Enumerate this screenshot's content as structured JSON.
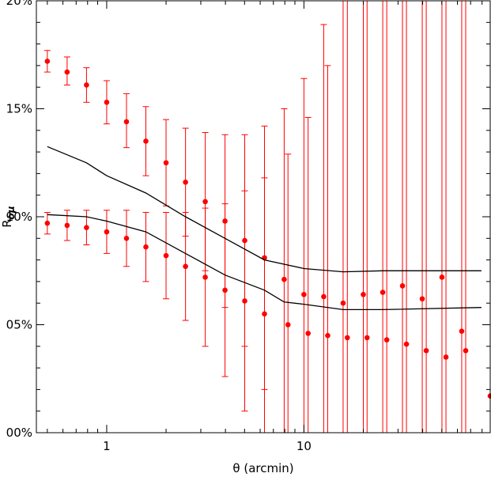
{
  "chart_data": {
    "type": "scatter",
    "title": "",
    "xlabel": "θ (arcmin)",
    "ylabel": "Rδμ",
    "xscale": "log",
    "xlim": [
      0.44,
      88
    ],
    "ylim": [
      0,
      20
    ],
    "x_ticks": [
      1,
      10
    ],
    "x_tick_labels": [
      "1",
      "10"
    ],
    "y_ticks": [
      0,
      5,
      10,
      15,
      20
    ],
    "y_tick_labels": [
      "00%",
      "05%",
      "10%",
      "15%",
      "20%"
    ],
    "point_color": "#ff0000",
    "line_color": "#000000",
    "grid": false,
    "series": [
      {
        "kind": "points",
        "points": [
          {
            "x": 0.5,
            "y": 17.2,
            "lo": 16.7,
            "hi": 17.7
          },
          {
            "x": 0.63,
            "y": 16.7,
            "lo": 16.1,
            "hi": 17.4
          },
          {
            "x": 0.79,
            "y": 16.1,
            "lo": 15.3,
            "hi": 16.9
          },
          {
            "x": 1.0,
            "y": 15.3,
            "lo": 14.3,
            "hi": 16.3
          },
          {
            "x": 1.26,
            "y": 14.4,
            "lo": 13.2,
            "hi": 15.7
          },
          {
            "x": 1.58,
            "y": 13.5,
            "lo": 11.9,
            "hi": 15.1
          },
          {
            "x": 2.0,
            "y": 12.5,
            "lo": 10.5,
            "hi": 14.5
          },
          {
            "x": 2.51,
            "y": 11.6,
            "lo": 9.1,
            "hi": 14.1
          },
          {
            "x": 3.16,
            "y": 10.7,
            "lo": 7.5,
            "hi": 13.9
          },
          {
            "x": 3.98,
            "y": 9.8,
            "lo": 5.8,
            "hi": 13.8
          },
          {
            "x": 5.01,
            "y": 8.9,
            "lo": 4.0,
            "hi": 13.8
          },
          {
            "x": 6.31,
            "y": 8.1,
            "lo": 2.0,
            "hi": 14.2
          }
        ]
      },
      {
        "kind": "points",
        "points": [
          {
            "x": 0.5,
            "y": 9.7,
            "lo": 9.2,
            "hi": 10.2
          },
          {
            "x": 0.63,
            "y": 9.6,
            "lo": 8.9,
            "hi": 10.3
          },
          {
            "x": 0.79,
            "y": 9.5,
            "lo": 8.7,
            "hi": 10.3
          },
          {
            "x": 1.0,
            "y": 9.3,
            "lo": 8.3,
            "hi": 10.3
          },
          {
            "x": 1.26,
            "y": 9.0,
            "lo": 7.7,
            "hi": 10.3
          },
          {
            "x": 1.58,
            "y": 8.6,
            "lo": 7.0,
            "hi": 10.2
          },
          {
            "x": 2.0,
            "y": 8.2,
            "lo": 6.2,
            "hi": 10.2
          },
          {
            "x": 2.51,
            "y": 7.7,
            "lo": 5.2,
            "hi": 10.2
          },
          {
            "x": 3.16,
            "y": 7.2,
            "lo": 4.0,
            "hi": 10.4
          },
          {
            "x": 3.98,
            "y": 6.6,
            "lo": 2.6,
            "hi": 10.6
          },
          {
            "x": 5.01,
            "y": 6.1,
            "lo": 1.0,
            "hi": 11.2
          },
          {
            "x": 6.31,
            "y": 5.5,
            "lo": 0.0,
            "hi": 11.8
          }
        ]
      },
      {
        "kind": "points",
        "points": [
          {
            "x": 7.94,
            "y": 7.1,
            "lo": 0.0,
            "hi": 15.0
          },
          {
            "x": 8.3,
            "y": 5.0,
            "lo": 0.0,
            "hi": 12.9
          },
          {
            "x": 10.0,
            "y": 6.4,
            "lo": 0.0,
            "hi": 16.4
          },
          {
            "x": 10.5,
            "y": 4.6,
            "lo": 0.0,
            "hi": 14.6
          },
          {
            "x": 12.6,
            "y": 6.3,
            "lo": 0.0,
            "hi": 18.9
          },
          {
            "x": 13.2,
            "y": 4.5,
            "lo": 0.0,
            "hi": 17.0
          },
          {
            "x": 15.8,
            "y": 6.0,
            "lo": 0.0,
            "hi": 20.0
          },
          {
            "x": 16.6,
            "y": 4.4,
            "lo": 0.0,
            "hi": 20.0
          },
          {
            "x": 20.0,
            "y": 6.4,
            "lo": 0.0,
            "hi": 20.0
          },
          {
            "x": 20.9,
            "y": 4.4,
            "lo": 0.0,
            "hi": 20.0
          },
          {
            "x": 25.1,
            "y": 6.5,
            "lo": 0.0,
            "hi": 20.0
          },
          {
            "x": 26.3,
            "y": 4.3,
            "lo": 0.0,
            "hi": 20.0
          },
          {
            "x": 31.6,
            "y": 6.8,
            "lo": 0.0,
            "hi": 20.0
          },
          {
            "x": 33.1,
            "y": 4.1,
            "lo": 0.0,
            "hi": 20.0
          },
          {
            "x": 39.8,
            "y": 6.2,
            "lo": 0.0,
            "hi": 20.0
          },
          {
            "x": 41.7,
            "y": 3.8,
            "lo": 0.0,
            "hi": 20.0
          },
          {
            "x": 50.1,
            "y": 7.2,
            "lo": 0.0,
            "hi": 20.0
          },
          {
            "x": 52.5,
            "y": 3.5,
            "lo": 0.0,
            "hi": 20.0
          },
          {
            "x": 63.1,
            "y": 4.7,
            "lo": 0.0,
            "hi": 20.0
          },
          {
            "x": 66.1,
            "y": 3.8,
            "lo": 0.0,
            "hi": 20.0
          },
          {
            "x": 88.0,
            "y": 1.7,
            "lo": 0.0,
            "hi": 20.0
          }
        ]
      },
      {
        "kind": "line",
        "points": [
          {
            "x": 0.5,
            "y": 13.25
          },
          {
            "x": 0.79,
            "y": 12.5
          },
          {
            "x": 1.0,
            "y": 11.9
          },
          {
            "x": 1.58,
            "y": 11.1
          },
          {
            "x": 2.51,
            "y": 10.0
          },
          {
            "x": 3.98,
            "y": 9.0
          },
          {
            "x": 6.31,
            "y": 8.0
          },
          {
            "x": 10.0,
            "y": 7.6
          },
          {
            "x": 15.8,
            "y": 7.45
          },
          {
            "x": 25.1,
            "y": 7.5
          },
          {
            "x": 39.8,
            "y": 7.5
          },
          {
            "x": 79.4,
            "y": 7.5
          }
        ]
      },
      {
        "kind": "line",
        "points": [
          {
            "x": 0.5,
            "y": 10.1
          },
          {
            "x": 0.79,
            "y": 10.0
          },
          {
            "x": 1.0,
            "y": 9.8
          },
          {
            "x": 1.58,
            "y": 9.3
          },
          {
            "x": 2.51,
            "y": 8.3
          },
          {
            "x": 3.98,
            "y": 7.3
          },
          {
            "x": 6.31,
            "y": 6.6
          },
          {
            "x": 7.94,
            "y": 6.05
          },
          {
            "x": 10.0,
            "y": 5.95
          },
          {
            "x": 15.8,
            "y": 5.7
          },
          {
            "x": 25.1,
            "y": 5.7
          },
          {
            "x": 79.4,
            "y": 5.8
          }
        ]
      }
    ]
  }
}
